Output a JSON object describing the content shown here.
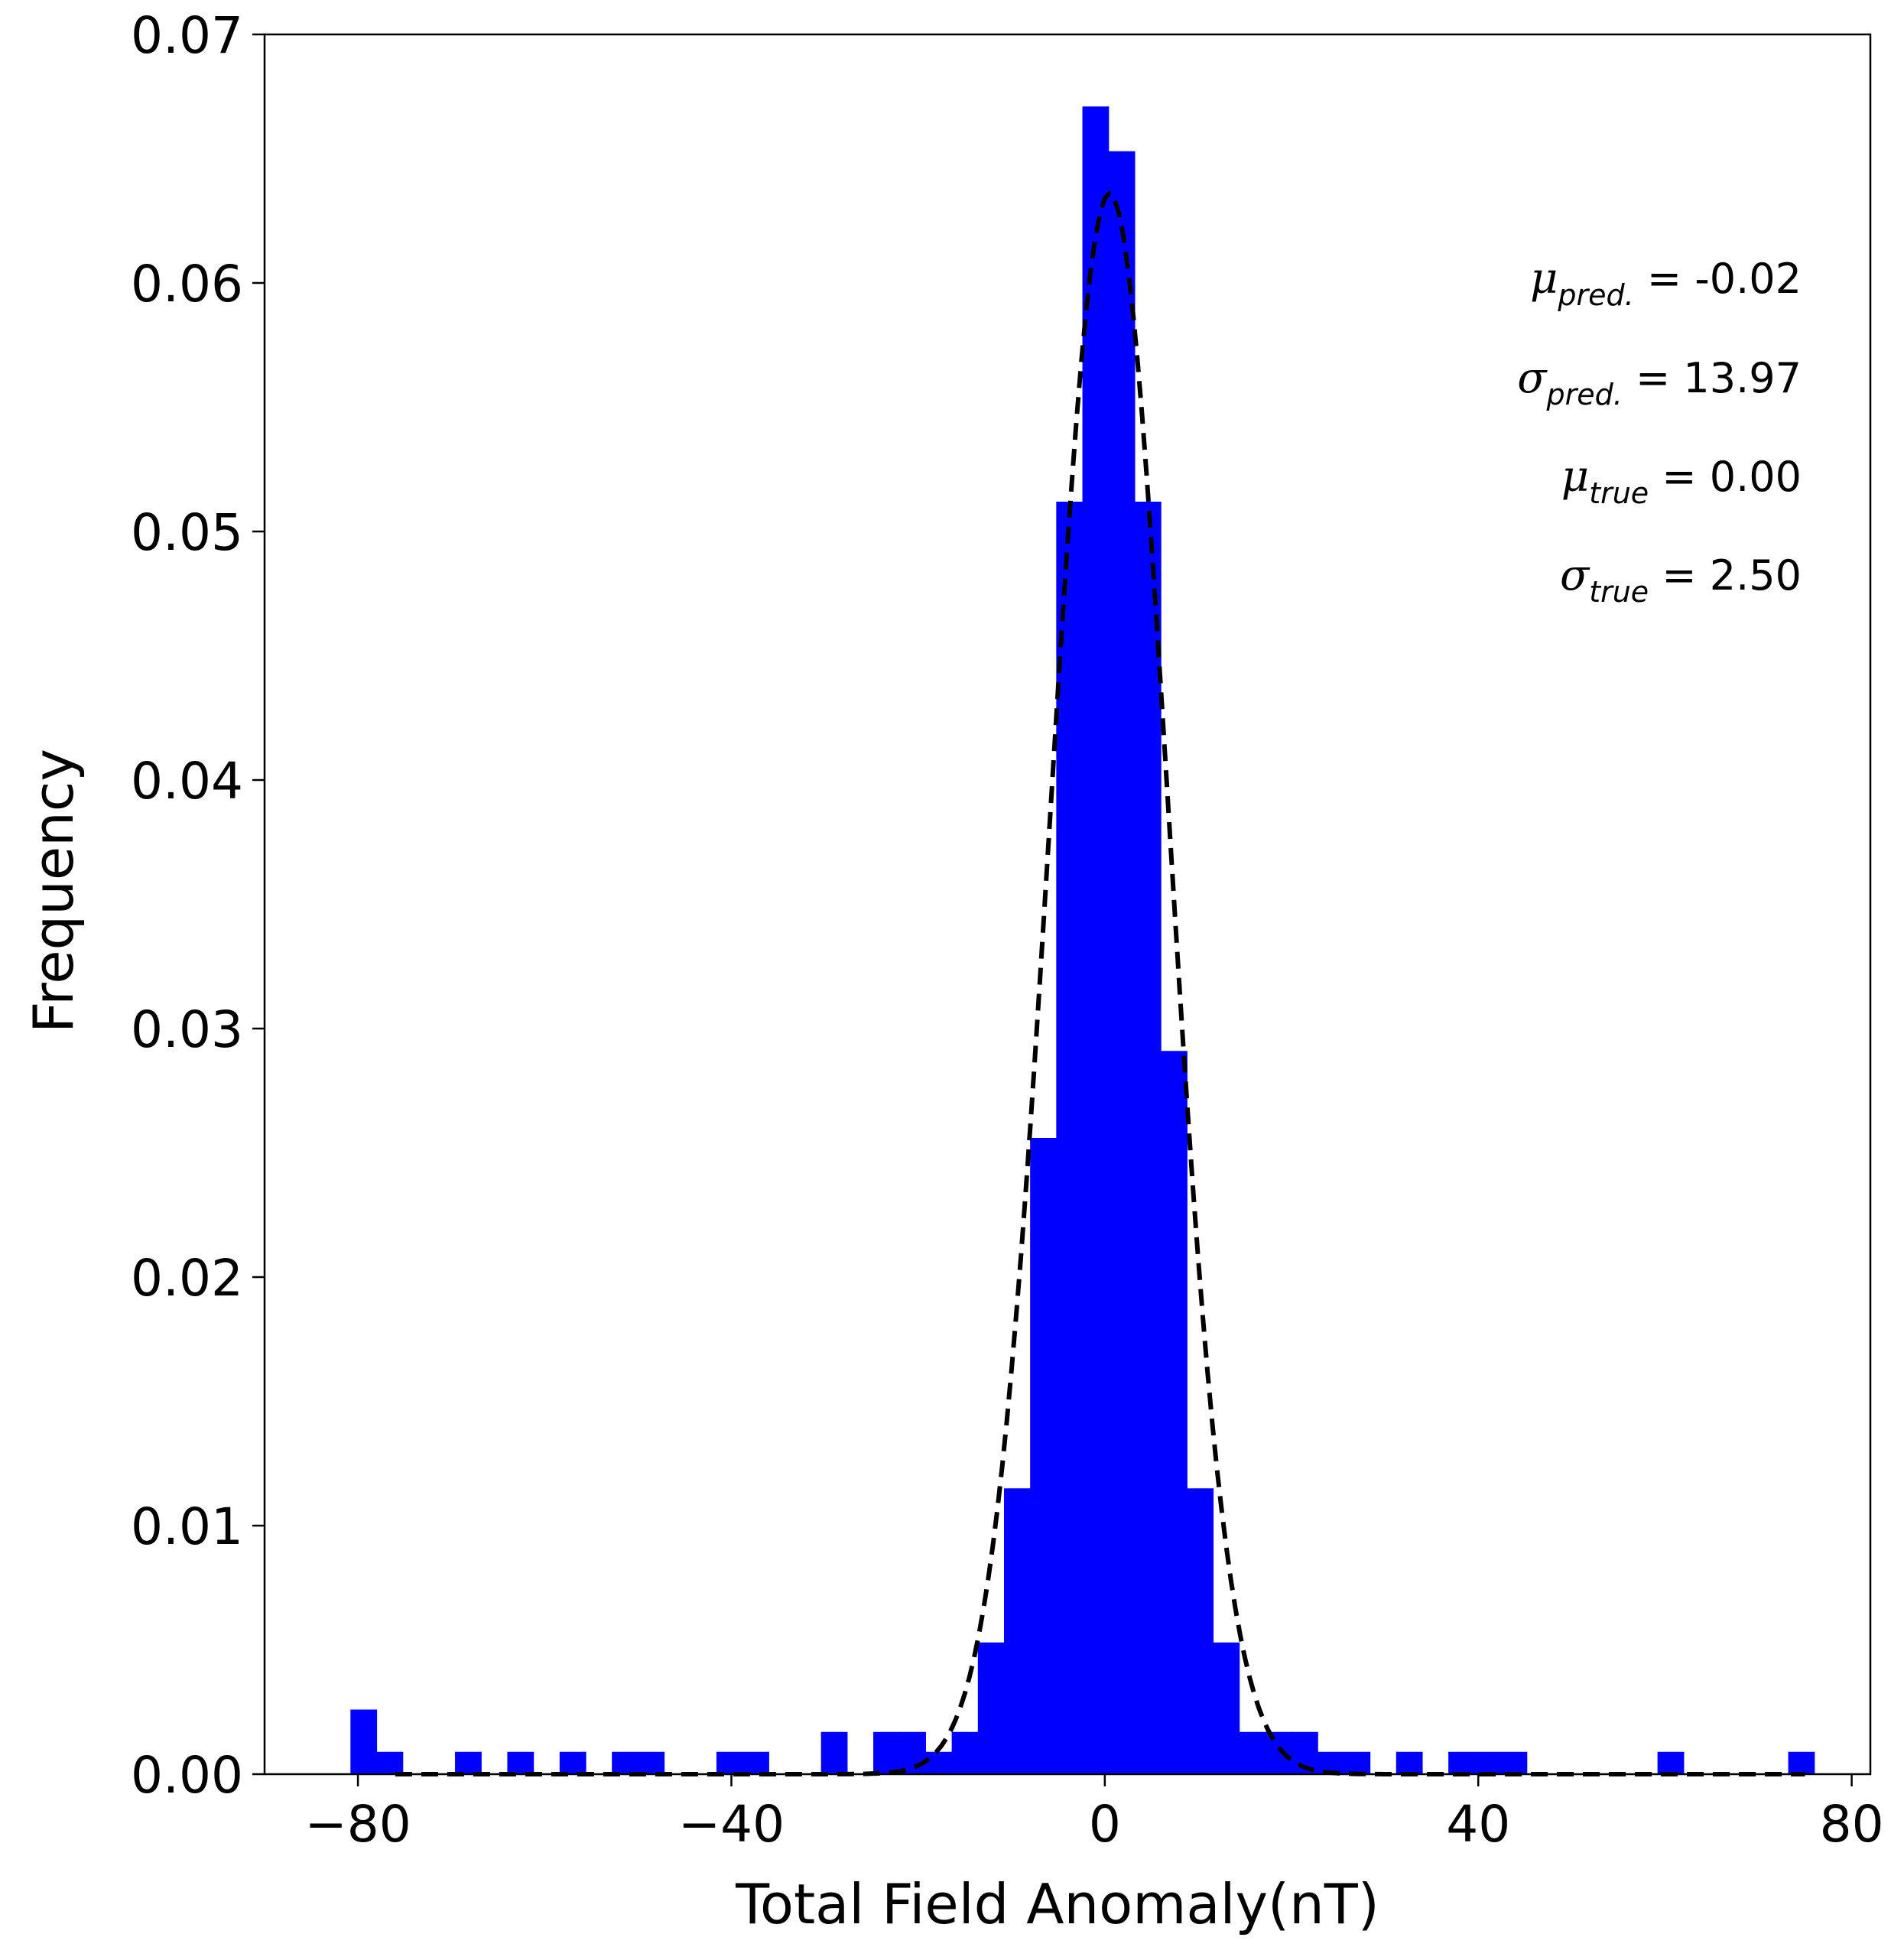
{
  "chart_data": {
    "type": "bar",
    "xlabel": "Total Field Anomaly(nT)",
    "ylabel": "Frequency",
    "xlim": [
      -90,
      82
    ],
    "ylim": [
      0,
      0.07
    ],
    "xticks": [
      -80,
      -40,
      0,
      40,
      80
    ],
    "xtick_labels": [
      "−80",
      "−40",
      "0",
      "40",
      "80"
    ],
    "yticks": [
      0.0,
      0.01,
      0.02,
      0.03,
      0.04,
      0.05,
      0.06,
      0.07
    ],
    "ytick_labels": [
      "0.00",
      "0.01",
      "0.02",
      "0.03",
      "0.04",
      "0.05",
      "0.06",
      "0.07"
    ],
    "grid": false,
    "bar_color": "#0000ff",
    "curve_color": "#000000",
    "bin_width": 2.8,
    "histogram": [
      {
        "x0": -80.8,
        "y": 0.0026
      },
      {
        "x0": -78.0,
        "y": 0.0009
      },
      {
        "x0": -69.6,
        "y": 0.0009
      },
      {
        "x0": -64.0,
        "y": 0.0009
      },
      {
        "x0": -58.4,
        "y": 0.0009
      },
      {
        "x0": -52.8,
        "y": 0.0009
      },
      {
        "x0": -50.0,
        "y": 0.0009
      },
      {
        "x0": -41.6,
        "y": 0.0009
      },
      {
        "x0": -38.8,
        "y": 0.0009
      },
      {
        "x0": -30.4,
        "y": 0.0017
      },
      {
        "x0": -24.8,
        "y": 0.0017
      },
      {
        "x0": -22.0,
        "y": 0.0017
      },
      {
        "x0": -19.2,
        "y": 0.0009
      },
      {
        "x0": -16.4,
        "y": 0.0017
      },
      {
        "x0": -13.6,
        "y": 0.0053
      },
      {
        "x0": -10.8,
        "y": 0.0115
      },
      {
        "x0": -8.0,
        "y": 0.0256
      },
      {
        "x0": -5.2,
        "y": 0.0512
      },
      {
        "x0": -2.4,
        "y": 0.0671
      },
      {
        "x0": 0.4,
        "y": 0.0653
      },
      {
        "x0": 3.2,
        "y": 0.0512
      },
      {
        "x0": 6.0,
        "y": 0.0291
      },
      {
        "x0": 8.8,
        "y": 0.0115
      },
      {
        "x0": 11.6,
        "y": 0.0053
      },
      {
        "x0": 14.4,
        "y": 0.0017
      },
      {
        "x0": 17.2,
        "y": 0.0017
      },
      {
        "x0": 20.0,
        "y": 0.0017
      },
      {
        "x0": 22.8,
        "y": 0.0009
      },
      {
        "x0": 25.6,
        "y": 0.0009
      },
      {
        "x0": 31.2,
        "y": 0.0009
      },
      {
        "x0": 36.8,
        "y": 0.0009
      },
      {
        "x0": 39.6,
        "y": 0.0009
      },
      {
        "x0": 42.4,
        "y": 0.0009
      },
      {
        "x0": 59.2,
        "y": 0.0009
      },
      {
        "x0": 73.2,
        "y": 0.0009
      }
    ],
    "curve": {
      "style": "dashed",
      "mean": 0.5,
      "peak": 0.0636,
      "sd": 6.35,
      "x_range": [
        -76.0,
        75.0
      ]
    },
    "annotations": [
      {
        "symbol": "μ",
        "sub": "pred.",
        "text": " = -0.02"
      },
      {
        "symbol": "σ",
        "sub": "pred.",
        "text": " = 13.97"
      },
      {
        "symbol": "μ",
        "sub": "true",
        "text": " = 0.00"
      },
      {
        "symbol": "σ",
        "sub": "true",
        "text": " = 2.50"
      }
    ]
  }
}
